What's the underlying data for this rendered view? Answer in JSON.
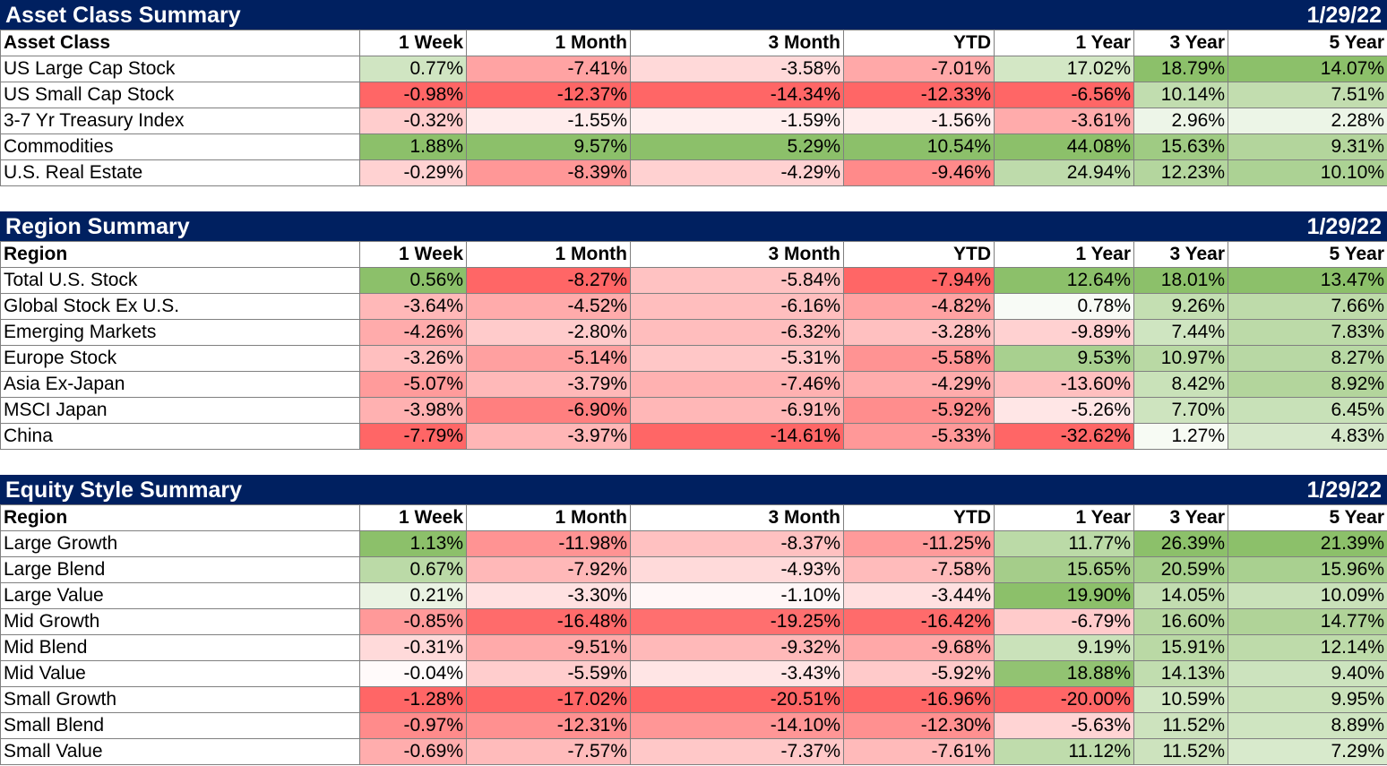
{
  "chart_data": [
    {
      "type": "table",
      "title": "Asset Class Summary",
      "date": "1/29/22",
      "columns": [
        "Asset Class",
        "1 Week",
        "1 Month",
        "3 Month",
        "YTD",
        "1 Year",
        "3 Year",
        "5 Year"
      ],
      "rows": [
        {
          "label": "US Large Cap Stock",
          "values": [
            "0.77%",
            "-7.41%",
            "-3.58%",
            "-7.01%",
            "17.02%",
            "18.79%",
            "14.07%"
          ]
        },
        {
          "label": "US Small Cap Stock",
          "values": [
            "-0.98%",
            "-12.37%",
            "-14.34%",
            "-12.33%",
            "-6.56%",
            "10.14%",
            "7.51%"
          ]
        },
        {
          "label": "3-7 Yr Treasury Index",
          "values": [
            "-0.32%",
            "-1.55%",
            "-1.59%",
            "-1.56%",
            "-3.61%",
            "2.96%",
            "2.28%"
          ]
        },
        {
          "label": "Commodities",
          "values": [
            "1.88%",
            "9.57%",
            "5.29%",
            "10.54%",
            "44.08%",
            "15.63%",
            "9.31%"
          ]
        },
        {
          "label": "U.S. Real Estate",
          "values": [
            "-0.29%",
            "-8.39%",
            "-4.29%",
            "-9.46%",
            "24.94%",
            "12.23%",
            "10.10%"
          ]
        }
      ]
    },
    {
      "type": "table",
      "title": "Region Summary",
      "date": "1/29/22",
      "columns": [
        "Region",
        "1 Week",
        "1 Month",
        "3 Month",
        "YTD",
        "1 Year",
        "3 Year",
        "5 Year"
      ],
      "rows": [
        {
          "label": "Total U.S. Stock",
          "values": [
            "0.56%",
            "-8.27%",
            "-5.84%",
            "-7.94%",
            "12.64%",
            "18.01%",
            "13.47%"
          ]
        },
        {
          "label": "Global Stock Ex U.S.",
          "values": [
            "-3.64%",
            "-4.52%",
            "-6.16%",
            "-4.82%",
            "0.78%",
            "9.26%",
            "7.66%"
          ]
        },
        {
          "label": "Emerging Markets",
          "values": [
            "-4.26%",
            "-2.80%",
            "-6.32%",
            "-3.28%",
            "-9.89%",
            "7.44%",
            "7.83%"
          ]
        },
        {
          "label": "Europe Stock",
          "values": [
            "-3.26%",
            "-5.14%",
            "-5.31%",
            "-5.58%",
            "9.53%",
            "10.97%",
            "8.27%"
          ]
        },
        {
          "label": "Asia Ex-Japan",
          "values": [
            "-5.07%",
            "-3.79%",
            "-7.46%",
            "-4.29%",
            "-13.60%",
            "8.42%",
            "8.92%"
          ]
        },
        {
          "label": "MSCI Japan",
          "values": [
            "-3.98%",
            "-6.90%",
            "-6.91%",
            "-5.92%",
            "-5.26%",
            "7.70%",
            "6.45%"
          ]
        },
        {
          "label": "China",
          "values": [
            "-7.79%",
            "-3.97%",
            "-14.61%",
            "-5.33%",
            "-32.62%",
            "1.27%",
            "4.83%"
          ]
        }
      ]
    },
    {
      "type": "table",
      "title": "Equity Style Summary",
      "date": "1/29/22",
      "columns": [
        "Region",
        "1 Week",
        "1 Month",
        "3 Month",
        "YTD",
        "1 Year",
        "3 Year",
        "5 Year"
      ],
      "rows": [
        {
          "label": "Large Growth",
          "values": [
            "1.13%",
            "-11.98%",
            "-8.37%",
            "-11.25%",
            "11.77%",
            "26.39%",
            "21.39%"
          ]
        },
        {
          "label": "Large Blend",
          "values": [
            "0.67%",
            "-7.92%",
            "-4.93%",
            "-7.58%",
            "15.65%",
            "20.59%",
            "15.96%"
          ]
        },
        {
          "label": "Large Value",
          "values": [
            "0.21%",
            "-3.30%",
            "-1.10%",
            "-3.44%",
            "19.90%",
            "14.05%",
            "10.09%"
          ]
        },
        {
          "label": "Mid Growth",
          "values": [
            "-0.85%",
            "-16.48%",
            "-19.25%",
            "-16.42%",
            "-6.79%",
            "16.60%",
            "14.77%"
          ]
        },
        {
          "label": "Mid Blend",
          "values": [
            "-0.31%",
            "-9.51%",
            "-9.32%",
            "-9.68%",
            "9.19%",
            "15.91%",
            "12.14%"
          ]
        },
        {
          "label": "Mid Value",
          "values": [
            "-0.04%",
            "-5.59%",
            "-3.43%",
            "-5.92%",
            "18.88%",
            "14.13%",
            "9.40%"
          ]
        },
        {
          "label": "Small Growth",
          "values": [
            "-1.28%",
            "-17.02%",
            "-20.51%",
            "-16.96%",
            "-20.00%",
            "10.59%",
            "9.95%"
          ]
        },
        {
          "label": "Small Blend",
          "values": [
            "-0.97%",
            "-12.31%",
            "-14.10%",
            "-12.30%",
            "-5.63%",
            "11.52%",
            "8.89%"
          ]
        },
        {
          "label": "Small Value",
          "values": [
            "-0.69%",
            "-7.57%",
            "-7.37%",
            "-7.61%",
            "11.12%",
            "11.52%",
            "7.29%"
          ]
        }
      ]
    }
  ],
  "colors": {
    "header_bg": "#002060",
    "header_text": "#ffffff",
    "positive_max": "#8CC06A",
    "negative_max": "#FF6666",
    "neutral": "#ffffff"
  }
}
